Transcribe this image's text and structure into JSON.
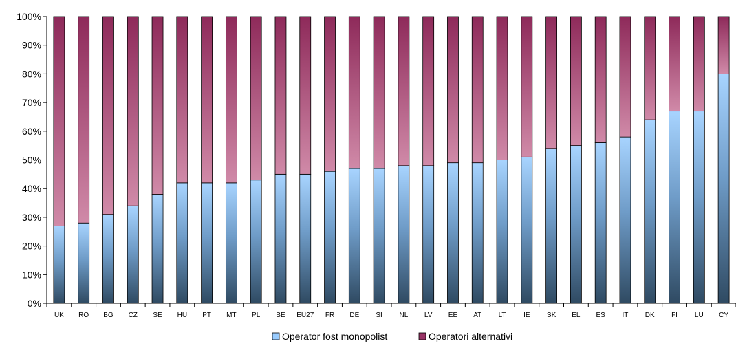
{
  "chart_data": {
    "type": "bar",
    "stacked": true,
    "percent_stacked": true,
    "categories": [
      "UK",
      "RO",
      "BG",
      "CZ",
      "SE",
      "HU",
      "PT",
      "MT",
      "PL",
      "BE",
      "EU27",
      "FR",
      "DE",
      "SI",
      "NL",
      "LV",
      "EE",
      "AT",
      "LT",
      "IE",
      "SK",
      "EL",
      "ES",
      "IT",
      "DK",
      "FI",
      "LU",
      "CY"
    ],
    "series": [
      {
        "name": "Operator fost monopolist",
        "color": "#99ccff",
        "values": [
          27,
          28,
          31,
          34,
          38,
          42,
          42,
          42,
          43,
          45,
          45,
          46,
          47,
          47,
          48,
          48,
          49,
          49,
          50,
          51,
          54,
          55,
          56,
          58,
          64,
          67,
          67,
          80
        ]
      },
      {
        "name": "Operatori alternativi",
        "color": "#993366",
        "values": [
          73,
          72,
          69,
          66,
          62,
          58,
          58,
          58,
          57,
          55,
          55,
          54,
          53,
          53,
          52,
          52,
          51,
          51,
          50,
          49,
          46,
          45,
          44,
          42,
          36,
          33,
          33,
          20
        ]
      }
    ],
    "yticks": [
      "0%",
      "10%",
      "20%",
      "30%",
      "40%",
      "50%",
      "60%",
      "70%",
      "80%",
      "90%",
      "100%"
    ],
    "ylim": [
      0,
      100
    ],
    "grid": false,
    "legend_position": "bottom"
  }
}
